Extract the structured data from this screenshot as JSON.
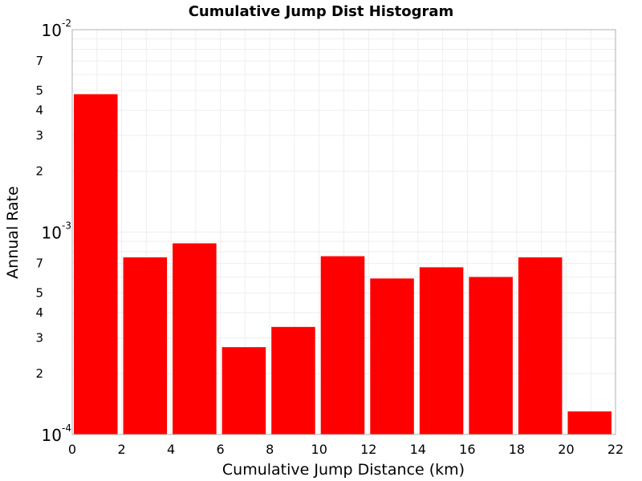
{
  "chart_data": {
    "type": "bar",
    "title": "Cumulative Jump Dist Histogram",
    "xlabel": "Cumulative Jump Distance (km)",
    "ylabel": "Annual Rate",
    "x_ticks": [
      "0",
      "2",
      "4",
      "6",
      "8",
      "10",
      "12",
      "14",
      "16",
      "18",
      "20",
      "22"
    ],
    "xlim": [
      0,
      22
    ],
    "ylim": [
      0.0001,
      0.01
    ],
    "yscale": "log",
    "y_major_ticks": [
      {
        "value": 0.01,
        "base": "10",
        "exp": "-2"
      },
      {
        "value": 0.001,
        "base": "10",
        "exp": "-3"
      },
      {
        "value": 0.0001,
        "base": "10",
        "exp": "-4"
      }
    ],
    "y_minor_tick_labels": [
      "2",
      "3",
      "4",
      "5",
      "7"
    ],
    "grid": true,
    "bar_color": "#ff0000",
    "bars": [
      {
        "x0": 0,
        "x1": 2,
        "value": 0.0048
      },
      {
        "x0": 2,
        "x1": 4,
        "value": 0.00075
      },
      {
        "x0": 4,
        "x1": 6,
        "value": 0.00088
      },
      {
        "x0": 6,
        "x1": 8,
        "value": 0.00027
      },
      {
        "x0": 8,
        "x1": 10,
        "value": 0.00034
      },
      {
        "x0": 10,
        "x1": 12,
        "value": 0.00076
      },
      {
        "x0": 12,
        "x1": 14,
        "value": 0.00059
      },
      {
        "x0": 14,
        "x1": 16,
        "value": 0.00067
      },
      {
        "x0": 16,
        "x1": 18,
        "value": 0.0006
      },
      {
        "x0": 18,
        "x1": 20,
        "value": 0.00075
      },
      {
        "x0": 20,
        "x1": 22,
        "value": 0.00013
      }
    ]
  }
}
